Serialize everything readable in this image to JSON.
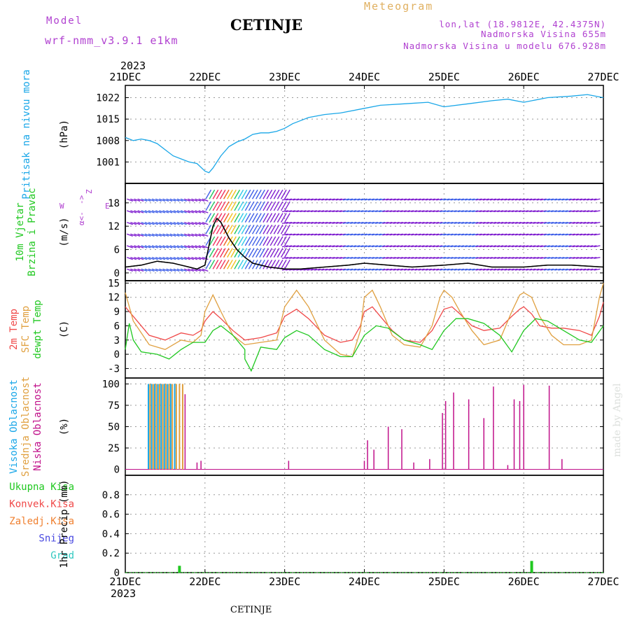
{
  "header": {
    "model_label": "Model",
    "model_name": "wrf-nmm_v3.9.1 e1km",
    "station": "CETINJE",
    "product": "Meteogram",
    "lonlat": "lon,lat (18.9812E, 42.4375N)",
    "altitude": "Nadmorska Visina 655m",
    "model_altitude": "Nadmorska Visina u modelu 676.928m",
    "footer_station": "CETINJE",
    "credit": "made by Angel"
  },
  "colors": {
    "pressure": "#1aa7e8",
    "temp2m": "#f04848",
    "sfc_temp": "#e0a040",
    "dewpt": "#20c820",
    "cloud_high": "#1aa7e8",
    "cloud_mid": "#e0a040",
    "cloud_low": "#c0108a",
    "precip": "#20c820",
    "title_purple": "#b040d0",
    "title_gold": "#e0b060"
  },
  "chart_data": {
    "type": "line",
    "time_axis": {
      "year_top": "2023",
      "year_bottom": "2023",
      "ticks": [
        "21DEC",
        "22DEC",
        "23DEC",
        "24DEC",
        "25DEC",
        "26DEC",
        "27DEC"
      ],
      "range_days": [
        0,
        6
      ]
    },
    "panels": [
      {
        "id": "pressure",
        "labels": [
          "Pritisak na nivou mora"
        ],
        "unit": "(hPa)",
        "ylim": [
          994,
          1026
        ],
        "yticks": [
          1001,
          1008,
          1015,
          1022
        ],
        "series": [
          {
            "name": "Pritisak na nivou mora",
            "x": [
              0,
              0.1,
              0.2,
              0.3,
              0.4,
              0.5,
              0.6,
              0.7,
              0.8,
              0.9,
              1.0,
              1.05,
              1.1,
              1.2,
              1.3,
              1.4,
              1.5,
              1.6,
              1.7,
              1.8,
              1.9,
              2.0,
              2.1,
              2.2,
              2.3,
              2.5,
              2.7,
              3.0,
              3.2,
              3.5,
              3.8,
              4.0,
              4.3,
              4.6,
              4.8,
              5.0,
              5.3,
              5.6,
              5.8,
              6.0
            ],
            "y": [
              1009,
              1008,
              1008.5,
              1008,
              1007,
              1005,
              1003,
              1002,
              1001,
              1000.5,
              998,
              997.5,
              999,
              1003,
              1006,
              1007.5,
              1008.5,
              1010,
              1010.5,
              1010.5,
              1011,
              1012,
              1013.5,
              1014.5,
              1015.5,
              1016.5,
              1017,
              1018.5,
              1019.5,
              1020,
              1020.5,
              1019,
              1020,
              1021,
              1021.5,
              1020.5,
              1022,
              1022.5,
              1023,
              1022
            ]
          }
        ]
      },
      {
        "id": "wind",
        "labels": [
          "10m Vjetar",
          "Brzina i Pravac"
        ],
        "unit": "(m/s)",
        "compass": [
          "Z",
          "W",
          "E",
          "α<-",
          "->"
        ],
        "ylim": [
          -2,
          23
        ],
        "yticks": [
          0,
          6,
          12,
          18
        ],
        "series": [
          {
            "name": "Brzina",
            "x": [
              0,
              0.2,
              0.4,
              0.6,
              0.8,
              0.9,
              1.0,
              1.05,
              1.1,
              1.15,
              1.2,
              1.3,
              1.4,
              1.5,
              1.6,
              1.8,
              2.0,
              2.2,
              2.5,
              2.8,
              3.0,
              3.3,
              3.6,
              4.0,
              4.3,
              4.6,
              5.0,
              5.3,
              5.6,
              6.0
            ],
            "y": [
              1.5,
              2,
              3,
              2.5,
              1.5,
              1,
              2,
              7,
              12,
              14,
              13,
              9,
              6,
              4,
              2.5,
              1.5,
              1,
              1,
              1.5,
              2,
              2.5,
              2,
              1.5,
              2,
              2.5,
              1.5,
              1.5,
              2,
              2,
              1.5
            ]
          }
        ]
      },
      {
        "id": "temperature",
        "labels": [
          "2m Temp",
          "SFC Temp",
          "dewpt Temp"
        ],
        "unit": "(C)",
        "ylim": [
          -5,
          15.5
        ],
        "yticks": [
          -3,
          0,
          3,
          6,
          9,
          12,
          15
        ],
        "series": [
          {
            "name": "2m Temp",
            "x": [
              0,
              0.1,
              0.3,
              0.5,
              0.7,
              0.85,
              0.95,
              1.0,
              1.1,
              1.2,
              1.35,
              1.5,
              1.7,
              1.9,
              2.0,
              2.15,
              2.3,
              2.5,
              2.7,
              2.85,
              2.95,
              3.0,
              3.1,
              3.2,
              3.35,
              3.5,
              3.7,
              3.85,
              3.95,
              4.0,
              4.1,
              4.2,
              4.35,
              4.5,
              4.7,
              4.85,
              4.95,
              5.0,
              5.1,
              5.2,
              5.35,
              5.5,
              5.7,
              5.85,
              5.95,
              6.0
            ],
            "y": [
              10,
              8,
              4,
              3,
              4.5,
              4,
              5,
              7,
              9,
              7.5,
              5,
              3,
              3.5,
              4.5,
              8,
              9.5,
              7.5,
              4,
              2.5,
              3,
              6,
              9,
              10,
              8,
              5,
              3,
              2.5,
              5,
              8,
              9.5,
              10,
              8.5,
              6,
              5,
              5.5,
              8,
              9.5,
              10,
              8.5,
              6,
              5.5,
              5.5,
              5,
              4,
              8,
              11
            ]
          },
          {
            "name": "SFC Temp",
            "x": [
              0,
              0.1,
              0.3,
              0.5,
              0.7,
              0.85,
              0.95,
              1.0,
              1.1,
              1.2,
              1.35,
              1.5,
              1.7,
              1.9,
              2.0,
              2.15,
              2.3,
              2.5,
              2.7,
              2.85,
              2.95,
              3.0,
              3.1,
              3.2,
              3.35,
              3.5,
              3.7,
              3.85,
              3.95,
              4.0,
              4.1,
              4.2,
              4.35,
              4.5,
              4.7,
              4.85,
              4.95,
              5.0,
              5.1,
              5.2,
              5.35,
              5.5,
              5.7,
              5.85,
              5.95,
              6.0
            ],
            "y": [
              13,
              7,
              2,
              1,
              3,
              2.5,
              4,
              9,
              12.5,
              9,
              4,
              2,
              2.5,
              3,
              10,
              13.5,
              10,
              3,
              0,
              -0.5,
              5,
              12,
              13.5,
              10,
              4,
              2,
              1.5,
              6,
              12,
              13.5,
              12,
              9,
              5,
              2,
              3,
              9,
              12.5,
              13,
              12,
              8,
              4,
              2,
              2,
              3,
              12,
              15
            ]
          },
          {
            "name": "dewpt Temp",
            "x": [
              0,
              0.05,
              0.1,
              0.2,
              0.4,
              0.55,
              0.7,
              0.85,
              1.0,
              1.1,
              1.2,
              1.35,
              1.5,
              1.5,
              1.58,
              1.7,
              1.9,
              2.0,
              2.15,
              2.3,
              2.5,
              2.7,
              2.85,
              3.0,
              3.15,
              3.3,
              3.5,
              3.7,
              3.85,
              4.0,
              4.15,
              4.3,
              4.5,
              4.7,
              4.85,
              5.0,
              5.15,
              5.3,
              5.5,
              5.7,
              5.85,
              6.0
            ],
            "y": [
              1,
              6.5,
              3,
              0.5,
              0,
              -1,
              1,
              2.5,
              2.5,
              5,
              6,
              4,
              1,
              -1,
              -3.5,
              1.5,
              1,
              3.5,
              5,
              4,
              1,
              -0.5,
              -0.5,
              4,
              6,
              5.5,
              3,
              2,
              1,
              5,
              7.5,
              7.5,
              6.5,
              4,
              0.5,
              5,
              7.5,
              7,
              5,
              3,
              2.5,
              6
            ]
          }
        ]
      },
      {
        "id": "cloud",
        "labels": [
          "Visoka Oblacnost",
          "Srednja Oblacnost",
          "Niska Oblacnost"
        ],
        "unit": "(%)",
        "ylim": [
          -7,
          107
        ],
        "yticks": [
          0,
          25,
          50,
          75,
          100
        ],
        "series": [
          {
            "name": "Visoka Oblacnost",
            "x": [
              0.29,
              0.33,
              0.37,
              0.41,
              0.45,
              0.49,
              0.53,
              0.57,
              0.62
            ],
            "y": [
              100,
              100,
              100,
              100,
              100,
              100,
              100,
              100,
              100
            ]
          },
          {
            "name": "Srednja Oblacnost",
            "x": [
              0.31,
              0.35,
              0.39,
              0.43,
              0.47,
              0.51,
              0.55,
              0.59,
              0.64,
              0.68,
              0.72
            ],
            "y": [
              100,
              100,
              100,
              100,
              100,
              100,
              100,
              100,
              100,
              100,
              100
            ]
          },
          {
            "name": "Niska Oblacnost",
            "x": [
              0.75,
              0.9,
              0.95,
              2.05,
              3.0,
              3.04,
              3.12,
              3.3,
              3.47,
              3.62,
              3.82,
              3.98,
              4.02,
              4.12,
              4.31,
              4.5,
              4.62,
              4.8,
              4.88,
              4.95,
              5.32,
              5.0,
              5.48,
              5.03,
              5.6,
              5.62,
              6.0
            ],
            "y": [
              88,
              8,
              10,
              10,
              10,
              34,
              23,
              50,
              47,
              8,
              12,
              66,
              80,
              90,
              82,
              60,
              97,
              5,
              82,
              80,
              98,
              99,
              12,
              0,
              0,
              0,
              0
            ]
          }
        ]
      },
      {
        "id": "precip",
        "labels": [
          "Ukupna Kisa",
          "Konvek.Kisa",
          "Zaledj.Kisa",
          "Snijeg",
          "Grad"
        ],
        "unit": "1hr Precip (mm)",
        "ylim": [
          0,
          1.0
        ],
        "yticks": [
          0,
          0.2,
          0.4,
          0.6,
          0.8
        ],
        "series": [
          {
            "name": "Ukupna Kisa",
            "x": [
              0.68,
              5.1
            ],
            "y": [
              0.07,
              0.12
            ]
          }
        ]
      }
    ]
  }
}
